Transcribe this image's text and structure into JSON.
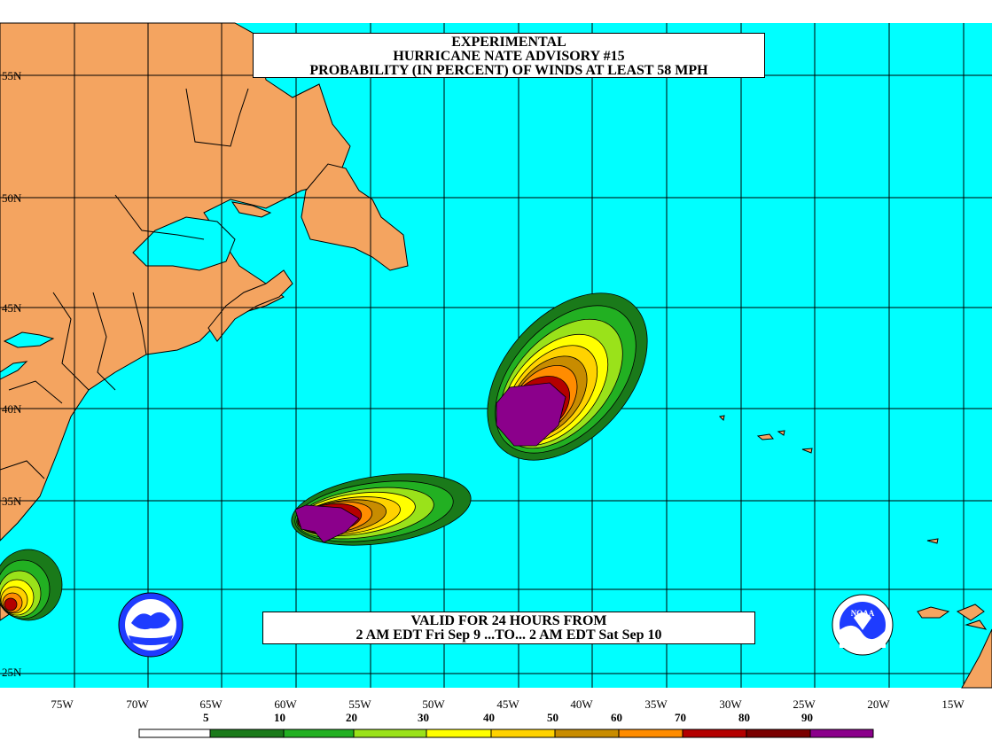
{
  "title": {
    "line1": "EXPERIMENTAL",
    "line2": "HURRICANE NATE ADVISORY #15",
    "line3": "PROBABILITY (IN PERCENT) OF WINDS AT LEAST 58 MPH"
  },
  "valid": {
    "line1": "VALID FOR 24 HOURS FROM",
    "line2": "2 AM EDT Fri Sep 9 ...TO... 2 AM EDT Sat Sep 10"
  },
  "lat_labels": [
    "55N",
    "50N",
    "45N",
    "40N",
    "35N",
    "25N"
  ],
  "lon_labels": [
    "75W",
    "70W",
    "65W",
    "60W",
    "55W",
    "50W",
    "45W",
    "40W",
    "35W",
    "30W",
    "25W",
    "20W",
    "15W"
  ],
  "legend": {
    "labels": [
      "5",
      "10",
      "20",
      "30",
      "40",
      "50",
      "60",
      "70",
      "80",
      "90"
    ],
    "colors": [
      "#ffffff",
      "#1a7a1a",
      "#22b022",
      "#9ae21a",
      "#ffff00",
      "#ffd200",
      "#c88c00",
      "#ff8c00",
      "#b40000",
      "#7a0000",
      "#8b008b"
    ]
  },
  "logos": {
    "left": "national-weather-service-logo",
    "right": "noaa-logo",
    "noaa_text": "NOAA"
  },
  "colors": {
    "ocean": "#00ffff",
    "land": "#f4a460",
    "grid": "#000000"
  }
}
